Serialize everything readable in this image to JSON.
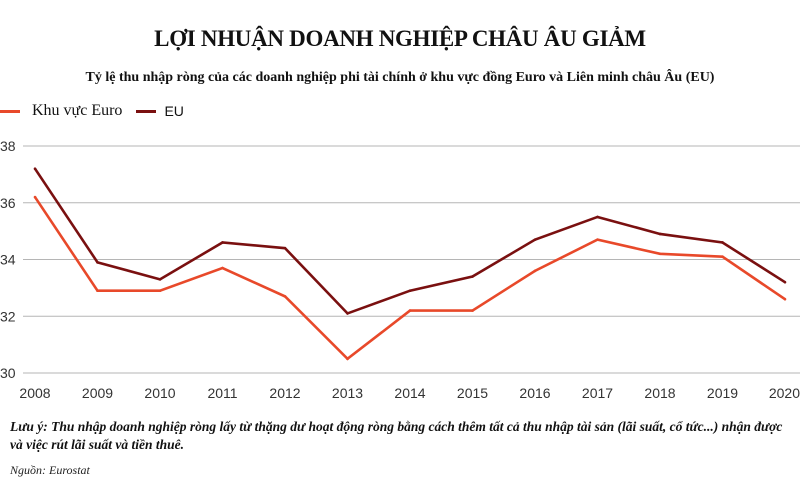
{
  "chart_data": {
    "type": "line",
    "title": "LỢI NHUẬN DOANH NGHIỆP CHÂU ÂU GIẢM",
    "subtitle": "Tỷ lệ thu nhập ròng của các doanh nghiệp phi tài chính ở khu vực đồng Euro và Liên minh châu Âu (EU)",
    "x": [
      "2008",
      "2009",
      "2010",
      "2011",
      "2012",
      "2013",
      "2014",
      "2015",
      "2016",
      "2017",
      "2018",
      "2019",
      "2020"
    ],
    "series": [
      {
        "name": "Khu vực Euro",
        "color": "#e8492a",
        "values": [
          36.2,
          32.9,
          32.9,
          33.7,
          32.7,
          30.5,
          32.2,
          32.2,
          33.6,
          34.7,
          34.2,
          34.1,
          32.6
        ]
      },
      {
        "name": "EU",
        "color": "#7a1010",
        "values": [
          37.2,
          33.9,
          33.3,
          34.6,
          34.4,
          32.1,
          32.9,
          33.4,
          34.7,
          35.5,
          34.9,
          34.6,
          33.2
        ]
      }
    ],
    "ylim": [
      30,
      38
    ],
    "yticks": [
      "30",
      "32",
      "34",
      "36",
      "38"
    ],
    "grid": true,
    "legend": "top-left",
    "xlabel": "",
    "ylabel": ""
  },
  "note": "Lưu ý: Thu nhập doanh nghiệp ròng lấy từ thặng dư hoạt động ròng bằng cách thêm tất cả thu nhập tài sản (lãi suất, cổ tức...) nhận được và việc rút lãi suất và tiền thuê.",
  "source": "Nguồn: Eurostat"
}
